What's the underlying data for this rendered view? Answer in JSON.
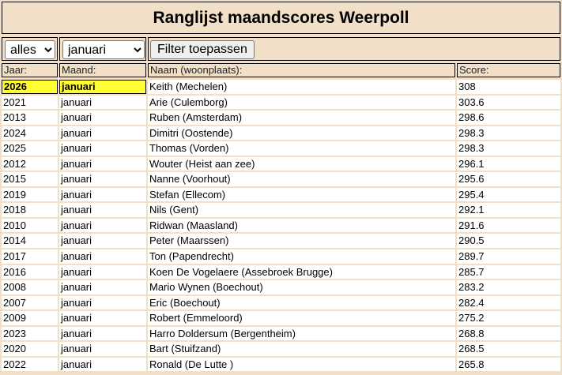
{
  "title": "Ranglijst maandscores Weerpoll",
  "filters": {
    "year_value": "alles",
    "month_value": "januari",
    "apply_label": "Filter toepassen"
  },
  "columns": [
    "Jaar:",
    "Maand:",
    "Naam (woonplaats):",
    "Score:"
  ],
  "highlight_color": "#ffff33",
  "rows": [
    [
      "2026",
      "januari",
      "Keith (Mechelen)",
      "308"
    ],
    [
      "2021",
      "januari",
      "Arie (Culemborg)",
      "303.6"
    ],
    [
      "2013",
      "januari",
      "Ruben (Amsterdam)",
      "298.6"
    ],
    [
      "2024",
      "januari",
      "Dimitri (Oostende)",
      "298.3"
    ],
    [
      "2025",
      "januari",
      "Thomas (Vorden)",
      "298.3"
    ],
    [
      "2012",
      "januari",
      "Wouter (Heist aan zee)",
      "296.1"
    ],
    [
      "2015",
      "januari",
      "Nanne (Voorhout)",
      "295.6"
    ],
    [
      "2019",
      "januari",
      "Stefan (Ellecom)",
      "295.4"
    ],
    [
      "2018",
      "januari",
      "Nils (Gent)",
      "292.1"
    ],
    [
      "2010",
      "januari",
      "Ridwan (Maasland)",
      "291.6"
    ],
    [
      "2014",
      "januari",
      "Peter (Maarssen)",
      "290.5"
    ],
    [
      "2017",
      "januari",
      "Ton (Papendrecht)",
      "289.7"
    ],
    [
      "2016",
      "januari",
      "Koen De Vogelaere (Assebroek Brugge)",
      "285.7"
    ],
    [
      "2008",
      "januari",
      "Mario Wynen (Boechout)",
      "283.2"
    ],
    [
      "2007",
      "januari",
      "Eric (Boechout)",
      "282.4"
    ],
    [
      "2009",
      "januari",
      "Robert (Emmeloord)",
      "275.2"
    ],
    [
      "2023",
      "januari",
      "Harro Doldersum (Bergentheim)",
      "268.8"
    ],
    [
      "2020",
      "januari",
      "Bart (Stuifzand)",
      "268.5"
    ],
    [
      "2022",
      "januari",
      "Ronald (De Lutte )",
      "265.8"
    ]
  ]
}
